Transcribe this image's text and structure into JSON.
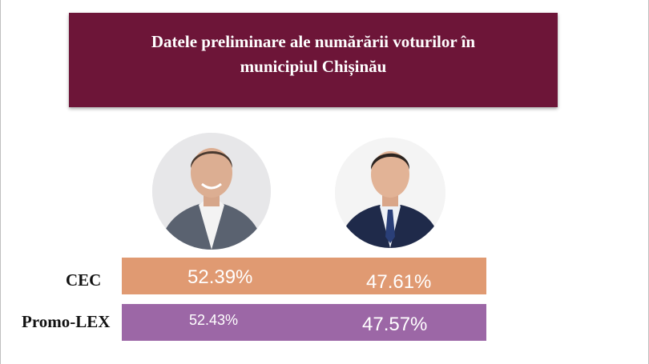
{
  "banner": {
    "title": "Datele preliminare ale numărării voturilor în municipiul Chișinău",
    "color": "#6d1538"
  },
  "candidates": [
    {
      "avatar_icon": "portrait-icon"
    },
    {
      "avatar_icon": "portrait-icon"
    }
  ],
  "chart_data": {
    "type": "bar",
    "categories": [
      "CEC",
      "Promo-LEX"
    ],
    "series": [
      {
        "values": [
          52.39,
          52.43
        ]
      },
      {
        "values": [
          47.61,
          47.57
        ]
      }
    ],
    "labels": [
      [
        "52.39%",
        "47.61%"
      ],
      [
        "52.43%",
        "47.57%"
      ]
    ],
    "colors": [
      "#e09a72",
      "#9c67a6"
    ]
  }
}
